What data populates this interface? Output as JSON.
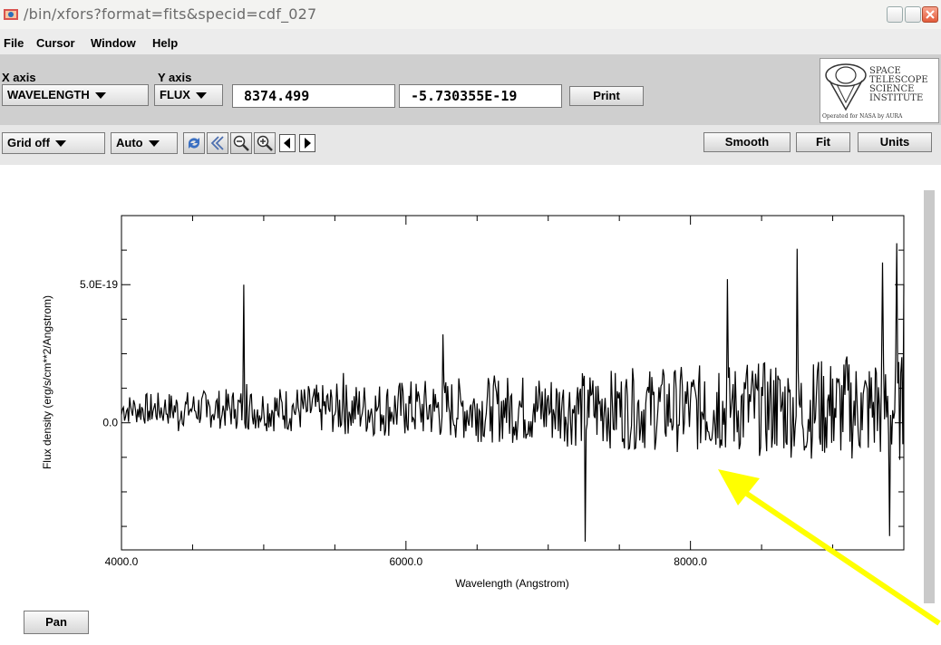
{
  "window": {
    "title": "/bin/xfors?format=fits&specid=cdf_027"
  },
  "menu": {
    "items": [
      "File",
      "Cursor",
      "Window",
      "Help"
    ]
  },
  "axis_selectors": {
    "x_label": "X axis",
    "y_label": "Y axis",
    "x_value": "WAVELENGTH",
    "y_value": "FLUX"
  },
  "cursor_readout": {
    "x": "8374.499",
    "y": "-5.730355E-19"
  },
  "buttons": {
    "print": "Print",
    "smooth": "Smooth",
    "fit": "Fit",
    "units": "Units",
    "pan": "Pan"
  },
  "toolbar": {
    "grid": "Grid off",
    "scale": "Auto",
    "icons": [
      "refresh-icon",
      "back-icon",
      "zoom-out-icon",
      "zoom-in-icon",
      "left-arrow-icon",
      "right-arrow-icon"
    ]
  },
  "logo": {
    "lines": [
      "SPACE",
      "TELESCOPE",
      "SCIENCE",
      "INSTITUTE"
    ],
    "tagline": "Operated for NASA by AURA"
  },
  "colors": {
    "annotation_arrow": "#ffff00",
    "spectrum": "#000000"
  },
  "chart_data": {
    "type": "line",
    "xlabel": "Wavelength (Angstrom)",
    "ylabel": "Flux density (erg/s/cm**2/Angstrom)",
    "xlim": [
      4000,
      9500
    ],
    "ylim": [
      -4.6e-19,
      7.5e-19
    ],
    "x_tick_labels": [
      "4000.0",
      "6000.0",
      "8000.0"
    ],
    "y_tick_labels": [
      "0.0",
      "5.0E-19"
    ],
    "grid": false,
    "series": [
      {
        "values_note_free": true,
        "x": [
          4000,
          4100,
          4200,
          4300,
          4400,
          4500,
          4600,
          4700,
          4800,
          4860,
          4880,
          4920,
          5000,
          5100,
          5200,
          5300,
          5400,
          5500,
          5560,
          5600,
          5700,
          5800,
          5900,
          6000,
          6100,
          6200,
          6260,
          6300,
          6400,
          6500,
          6600,
          6700,
          6800,
          6900,
          7000,
          7100,
          7200,
          7260,
          7280,
          7300,
          7400,
          7500,
          7600,
          7700,
          7800,
          7900,
          8000,
          8100,
          8200,
          8260,
          8300,
          8400,
          8500,
          8600,
          8700,
          8750,
          8800,
          8900,
          9000,
          9100,
          9200,
          9300,
          9350,
          9400,
          9450,
          9500
        ],
        "y": [
          3e-20,
          4e-20,
          1e-20,
          5e-20,
          -3e-20,
          6e-20,
          2e-20,
          1e-20,
          5e-20,
          5e-19,
          1.4e-19,
          2e-20,
          4e-20,
          3e-20,
          6e-20,
          4e-20,
          5e-20,
          3e-20,
          1.8e-19,
          4e-20,
          6e-20,
          5e-20,
          4e-20,
          7e-20,
          5e-20,
          4e-20,
          3.2e-19,
          6e-20,
          8e-20,
          7e-20,
          6e-20,
          9e-20,
          8e-20,
          7e-20,
          1e-19,
          9e-20,
          8e-20,
          -4.3e-19,
          1.2e-19,
          1e-19,
          9e-20,
          1.1e-19,
          1.5e-19,
          1.3e-19,
          1.4e-19,
          1.2e-19,
          8e-20,
          1.5e-19,
          1.8e-19,
          5.2e-19,
          1.4e-19,
          2.1e-19,
          1.3e-19,
          2e-19,
          1.2e-19,
          6.3e-19,
          -1e-19,
          2.2e-19,
          1.6e-19,
          2.4e-19,
          1.1e-19,
          2e-19,
          5.8e-19,
          -4.1e-19,
          6.5e-19,
          5e-19
        ]
      }
    ]
  }
}
